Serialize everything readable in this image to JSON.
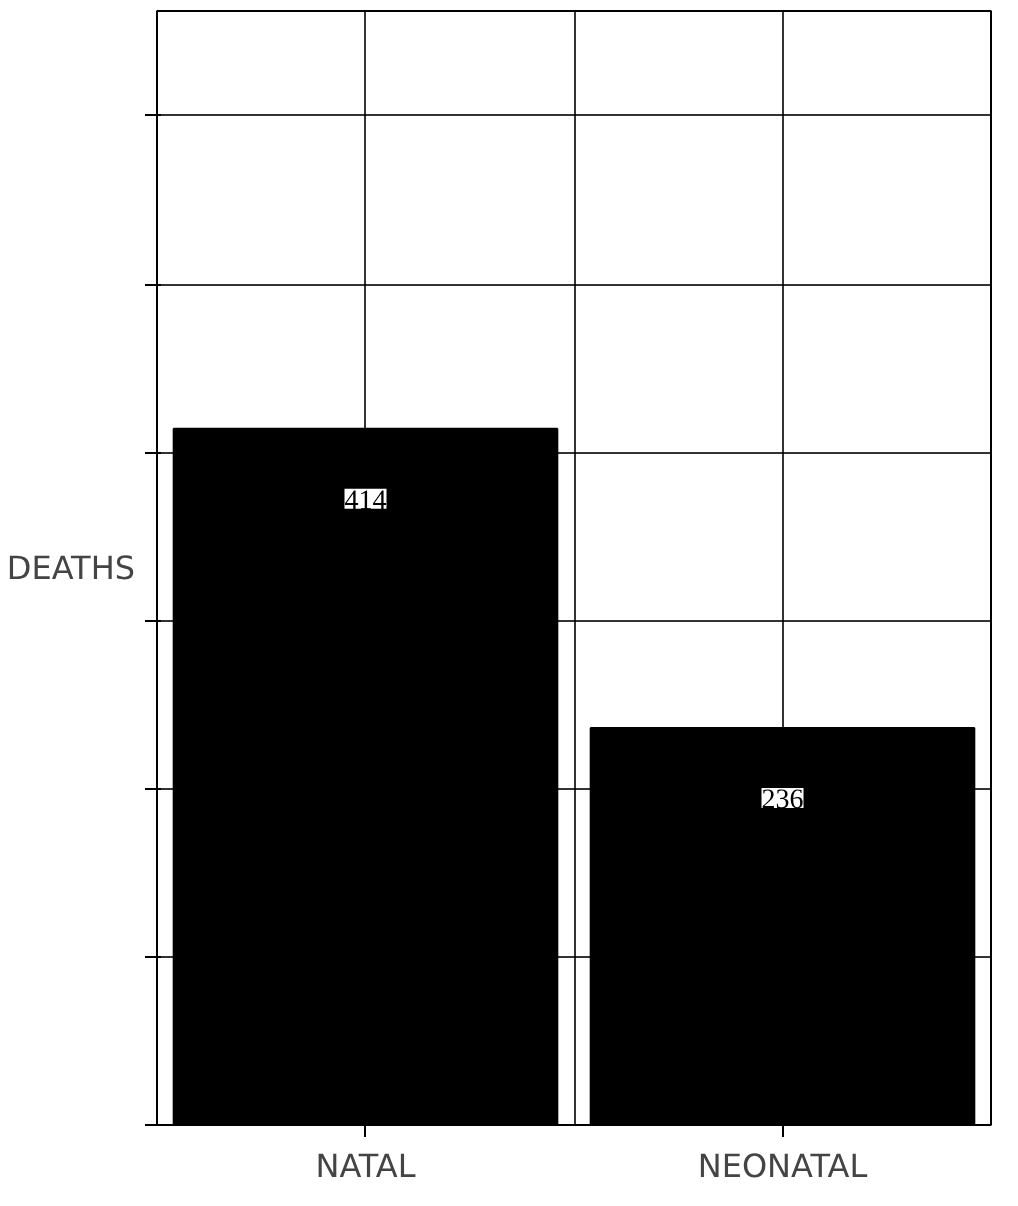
{
  "chart_data": {
    "type": "bar",
    "categories": [
      "NATAL",
      "NEONATAL"
    ],
    "values": [
      414,
      236
    ],
    "color": "#000000",
    "ylabel": "DEATHS",
    "data_labels": true,
    "grid": true,
    "tick_labels": "x"
  }
}
